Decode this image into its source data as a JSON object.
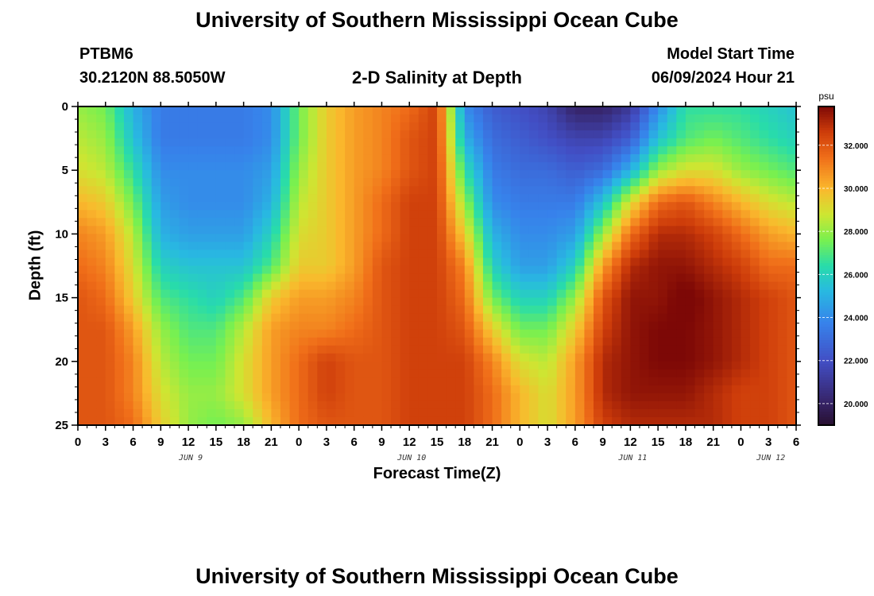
{
  "header": {
    "title": "University of Southern Mississippi Ocean Cube",
    "station": "PTBM6",
    "location": "30.2120N  88.5050W",
    "plot_title": "2-D Salinity at Depth",
    "start_label": "Model Start Time",
    "start_value": "06/09/2024 Hour 21",
    "footer_title": "University of Southern Mississippi Ocean Cube"
  },
  "chart_data": {
    "type": "heatmap",
    "title": "2-D Salinity at Depth",
    "xlabel": "Forecast Time(Z)",
    "ylabel": "Depth (ft)",
    "y_ticks": [
      "0",
      "5",
      "10",
      "15",
      "20",
      "25"
    ],
    "ylim": [
      0,
      25
    ],
    "x_ticks": [
      "0",
      "3",
      "6",
      "9",
      "12",
      "15",
      "18",
      "21",
      "0",
      "3",
      "6",
      "9",
      "12",
      "15",
      "18",
      "21",
      "0",
      "3",
      "6",
      "9",
      "12",
      "15",
      "18",
      "21",
      "0",
      "3",
      "6"
    ],
    "x_hours": [
      0,
      78
    ],
    "date_labels": [
      {
        "label": "JUN 9",
        "hour": 12
      },
      {
        "label": "JUN 10",
        "hour": 36
      },
      {
        "label": "JUN 11",
        "hour": 60
      },
      {
        "label": "JUN 12",
        "hour": 75
      }
    ],
    "colorbar": {
      "unit": "psu",
      "ticks": [
        "20.000",
        "22.000",
        "24.000",
        "26.000",
        "28.000",
        "30.000",
        "32.000"
      ],
      "range": [
        19.0,
        33.8
      ]
    },
    "value_grid": {
      "x_hours": [
        0,
        3,
        6,
        9,
        12,
        15,
        18,
        21,
        24,
        27,
        30,
        33,
        36,
        39,
        42,
        45,
        48,
        51,
        54,
        57,
        60,
        63,
        66,
        69,
        72,
        75,
        78
      ],
      "depths_ft": [
        0,
        2.5,
        5,
        7.5,
        10,
        12.5,
        15,
        17.5,
        20,
        22.5,
        25
      ],
      "values": [
        [
          28.0,
          27.5,
          25.0,
          23.5,
          23.5,
          23.5,
          23.5,
          24.0,
          27.5,
          29.5,
          30.5,
          31.0,
          31.5,
          32.5,
          24.0,
          22.5,
          22.0,
          21.5,
          20.0,
          20.0,
          21.0,
          24.0,
          26.5,
          26.5,
          26.5,
          26.0,
          25.5
        ],
        [
          28.5,
          28.0,
          25.5,
          23.5,
          23.5,
          23.5,
          23.5,
          24.0,
          27.5,
          29.5,
          30.5,
          31.0,
          32.0,
          32.5,
          25.0,
          23.0,
          22.5,
          22.0,
          21.5,
          21.5,
          22.5,
          25.5,
          27.0,
          27.5,
          27.0,
          26.5,
          26.0
        ],
        [
          29.0,
          28.5,
          26.5,
          24.0,
          24.0,
          24.0,
          24.0,
          24.5,
          28.0,
          29.5,
          30.5,
          31.0,
          32.0,
          32.5,
          26.5,
          23.5,
          23.0,
          23.0,
          22.5,
          23.0,
          25.0,
          28.0,
          29.0,
          29.0,
          28.0,
          27.5,
          27.0
        ],
        [
          30.0,
          29.5,
          27.5,
          24.5,
          24.0,
          24.0,
          24.0,
          25.0,
          28.5,
          29.5,
          30.5,
          31.5,
          32.5,
          32.5,
          28.0,
          24.0,
          23.5,
          23.5,
          23.5,
          25.5,
          29.0,
          31.5,
          32.0,
          31.0,
          30.0,
          29.0,
          28.5
        ],
        [
          31.0,
          30.5,
          28.5,
          25.0,
          24.5,
          24.5,
          24.5,
          26.0,
          29.0,
          29.5,
          30.5,
          31.5,
          32.5,
          32.5,
          29.5,
          25.0,
          24.0,
          24.0,
          24.5,
          28.0,
          31.5,
          33.0,
          33.0,
          32.5,
          31.5,
          30.5,
          30.0
        ],
        [
          31.5,
          31.0,
          29.0,
          26.0,
          25.5,
          25.5,
          25.5,
          27.0,
          29.5,
          29.5,
          30.5,
          32.0,
          32.5,
          32.5,
          31.0,
          26.0,
          24.5,
          24.5,
          26.0,
          30.5,
          33.0,
          33.5,
          33.5,
          33.0,
          32.5,
          31.5,
          31.5
        ],
        [
          32.0,
          31.5,
          29.5,
          27.0,
          26.5,
          26.0,
          27.0,
          29.5,
          30.5,
          30.5,
          31.0,
          32.0,
          32.5,
          32.5,
          31.5,
          27.5,
          26.0,
          26.0,
          28.0,
          32.0,
          33.5,
          33.5,
          34.0,
          33.5,
          33.0,
          32.5,
          32.0
        ],
        [
          32.0,
          32.0,
          30.5,
          28.0,
          27.0,
          27.0,
          28.5,
          30.5,
          31.0,
          31.0,
          31.5,
          32.0,
          32.5,
          32.5,
          32.0,
          29.5,
          27.5,
          27.5,
          29.5,
          32.5,
          33.5,
          33.8,
          33.8,
          33.5,
          33.0,
          32.5,
          32.0
        ],
        [
          32.0,
          32.0,
          31.0,
          28.5,
          27.5,
          27.5,
          29.0,
          30.5,
          31.5,
          32.5,
          32.0,
          32.0,
          32.5,
          32.5,
          32.5,
          31.0,
          29.0,
          28.5,
          30.5,
          33.0,
          33.5,
          33.8,
          33.8,
          33.5,
          33.0,
          32.5,
          32.0
        ],
        [
          32.0,
          32.0,
          31.0,
          29.0,
          28.0,
          28.0,
          29.0,
          30.5,
          31.5,
          32.5,
          32.0,
          32.0,
          32.5,
          32.5,
          32.5,
          31.5,
          30.0,
          29.0,
          30.5,
          33.0,
          33.5,
          33.5,
          33.5,
          33.0,
          32.5,
          32.5,
          32.0
        ],
        [
          32.0,
          32.0,
          31.5,
          29.5,
          28.0,
          27.5,
          28.0,
          30.0,
          31.5,
          32.0,
          32.0,
          32.0,
          32.5,
          32.5,
          32.5,
          31.5,
          30.0,
          29.0,
          30.5,
          32.5,
          33.0,
          33.0,
          33.0,
          33.0,
          32.5,
          32.5,
          32.0
        ]
      ]
    }
  }
}
